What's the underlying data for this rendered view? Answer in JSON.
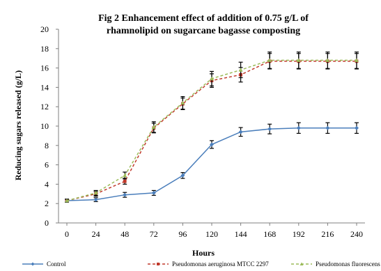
{
  "chart_data": {
    "type": "line",
    "title": "Fig 2 Enhancement effect of addition of 0.75 g/L of",
    "subtitle": "rhamnolipid on sugarcane bagasse composting",
    "xlabel": "Hours",
    "ylabel": "Reducing sugars released (g/L)",
    "x": [
      0,
      24,
      48,
      72,
      96,
      120,
      144,
      168,
      192,
      216,
      240
    ],
    "ylim": [
      0,
      20
    ],
    "yticks": [
      0,
      2,
      4,
      6,
      8,
      10,
      12,
      14,
      16,
      18,
      20
    ],
    "grid": false,
    "legend_position": "bottom",
    "series": [
      {
        "name": "Control",
        "color": "#4a7ebb",
        "marker": "diamond",
        "line_style": "solid",
        "values": [
          2.3,
          2.4,
          2.9,
          3.1,
          4.9,
          8.1,
          9.4,
          9.7,
          9.8,
          9.8,
          9.8
        ],
        "errors": [
          0.15,
          0.2,
          0.25,
          0.25,
          0.3,
          0.4,
          0.45,
          0.5,
          0.55,
          0.55,
          0.55
        ]
      },
      {
        "name": "Pseudomonas aeruginosa MTCC 2297",
        "color": "#c0392b",
        "marker": "square",
        "line_style": "dashed",
        "values": [
          2.3,
          3.0,
          4.3,
          9.8,
          12.3,
          14.7,
          15.3,
          16.7,
          16.7,
          16.7,
          16.7
        ],
        "errors": [
          0.15,
          0.25,
          0.3,
          0.5,
          0.6,
          0.7,
          0.75,
          0.8,
          0.8,
          0.8,
          0.8
        ]
      },
      {
        "name": "Pseudomonas fluorescens",
        "color": "#9bbb59",
        "marker": "triangle",
        "line_style": "dashed",
        "values": [
          2.3,
          3.1,
          4.9,
          9.9,
          12.4,
          14.9,
          15.8,
          16.8,
          16.8,
          16.8,
          16.8
        ],
        "errors": [
          0.15,
          0.25,
          0.35,
          0.55,
          0.65,
          0.75,
          0.8,
          0.85,
          0.85,
          0.85,
          0.85
        ]
      }
    ]
  }
}
